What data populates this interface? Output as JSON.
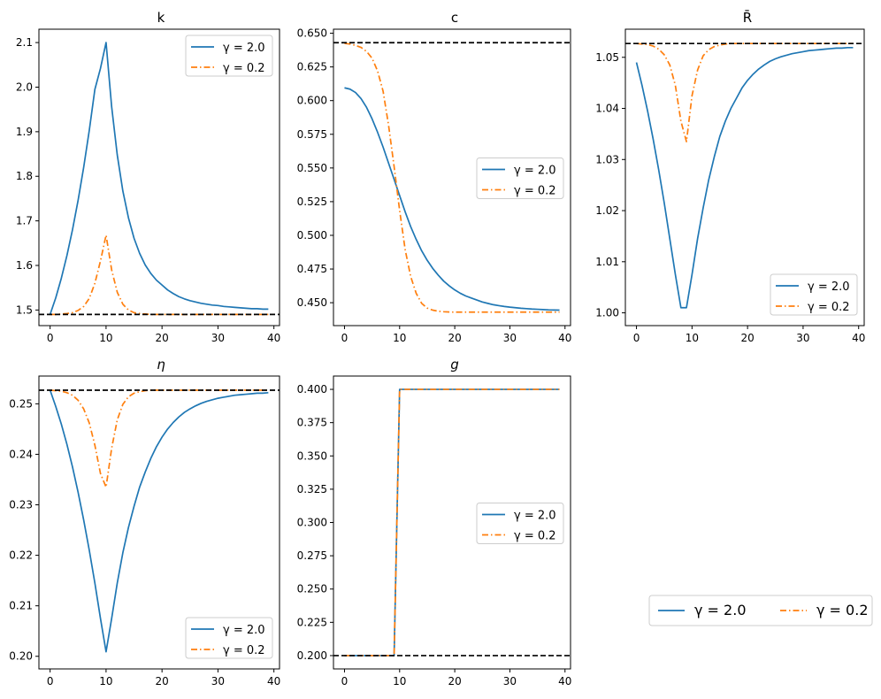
{
  "colors": {
    "blue": "#1f77b4",
    "orange": "#ff7f0e",
    "steady": "#000000"
  },
  "legend": {
    "entries": [
      "γ = 2.0",
      "γ = 0.2"
    ]
  },
  "chart_data": [
    {
      "type": "line",
      "title": "k",
      "xlabel": "",
      "ylabel": "",
      "xlim": [
        -2,
        41
      ],
      "ylim": [
        1.465,
        2.13
      ],
      "xticks": [
        0,
        10,
        20,
        30,
        40
      ],
      "yticks": [
        1.5,
        1.6,
        1.7,
        1.8,
        1.9,
        2.0,
        2.1
      ],
      "ytick_labels": [
        "1.5",
        "1.6",
        "1.7",
        "1.8",
        "1.9",
        "2.0",
        "2.1"
      ],
      "steady_state": 1.49,
      "legend_position": "top-right",
      "series": [
        {
          "name": "γ = 2.0",
          "style": "solid",
          "x": [
            0,
            1,
            2,
            3,
            4,
            5,
            6,
            7,
            8,
            9,
            10,
            11,
            12,
            13,
            14,
            15,
            16,
            17,
            18,
            19,
            20,
            21,
            22,
            23,
            24,
            25,
            26,
            27,
            28,
            29,
            30,
            31,
            32,
            33,
            34,
            35,
            36,
            37,
            38,
            39
          ],
          "values": [
            1.49,
            1.527,
            1.571,
            1.622,
            1.68,
            1.746,
            1.82,
            1.903,
            1.995,
            2.042,
            2.1,
            1.956,
            1.848,
            1.767,
            1.707,
            1.661,
            1.627,
            1.601,
            1.582,
            1.567,
            1.556,
            1.545,
            1.537,
            1.53,
            1.525,
            1.521,
            1.518,
            1.515,
            1.513,
            1.511,
            1.51,
            1.508,
            1.507,
            1.506,
            1.505,
            1.504,
            1.503,
            1.503,
            1.502,
            1.502
          ]
        },
        {
          "name": "γ = 0.2",
          "style": "dashdot",
          "x": [
            0,
            1,
            2,
            3,
            4,
            5,
            6,
            7,
            8,
            9,
            10,
            11,
            12,
            13,
            14,
            15,
            16,
            17,
            18,
            19,
            20,
            21,
            22,
            23,
            24,
            25,
            26,
            27,
            28,
            29,
            30,
            31,
            32,
            33,
            34,
            35,
            36,
            37,
            38,
            39
          ],
          "values": [
            1.49,
            1.49,
            1.491,
            1.492,
            1.494,
            1.499,
            1.508,
            1.526,
            1.56,
            1.61,
            1.668,
            1.59,
            1.54,
            1.513,
            1.5,
            1.494,
            1.492,
            1.491,
            1.49,
            1.49,
            1.49,
            1.49,
            1.49,
            1.49,
            1.49,
            1.49,
            1.49,
            1.49,
            1.49,
            1.49,
            1.49,
            1.49,
            1.49,
            1.49,
            1.49,
            1.49,
            1.49,
            1.49,
            1.49,
            1.49
          ]
        }
      ]
    },
    {
      "type": "line",
      "title": "c",
      "xlabel": "",
      "ylabel": "",
      "xlim": [
        -2,
        41
      ],
      "ylim": [
        0.433,
        0.653
      ],
      "xticks": [
        0,
        10,
        20,
        30,
        40
      ],
      "yticks": [
        0.45,
        0.475,
        0.5,
        0.525,
        0.55,
        0.575,
        0.6,
        0.625,
        0.65
      ],
      "ytick_labels": [
        "0.450",
        "0.475",
        "0.500",
        "0.525",
        "0.550",
        "0.575",
        "0.600",
        "0.625",
        "0.650"
      ],
      "steady_state": 0.643,
      "legend_position": "center-right",
      "series": [
        {
          "name": "γ = 2.0",
          "style": "solid",
          "x": [
            0,
            1,
            2,
            3,
            4,
            5,
            6,
            7,
            8,
            9,
            10,
            11,
            12,
            13,
            14,
            15,
            16,
            17,
            18,
            19,
            20,
            21,
            22,
            23,
            24,
            25,
            26,
            27,
            28,
            29,
            30,
            31,
            32,
            33,
            34,
            35,
            36,
            37,
            38,
            39
          ],
          "values": [
            0.6095,
            0.6085,
            0.606,
            0.6015,
            0.595,
            0.5865,
            0.5765,
            0.5655,
            0.5535,
            0.5415,
            0.5295,
            0.5175,
            0.5065,
            0.497,
            0.4885,
            0.4815,
            0.4755,
            0.4705,
            0.466,
            0.4625,
            0.4595,
            0.457,
            0.455,
            0.4535,
            0.452,
            0.4505,
            0.4495,
            0.4485,
            0.4478,
            0.4472,
            0.4467,
            0.4463,
            0.4459,
            0.4456,
            0.4453,
            0.4451,
            0.4449,
            0.4447,
            0.4446,
            0.4445
          ]
        },
        {
          "name": "γ = 0.2",
          "style": "dashdot",
          "x": [
            0,
            1,
            2,
            3,
            4,
            5,
            6,
            7,
            8,
            9,
            10,
            11,
            12,
            13,
            14,
            15,
            16,
            17,
            18,
            19,
            20,
            21,
            22,
            23,
            24,
            25,
            26,
            27,
            28,
            29,
            30,
            31,
            32,
            33,
            34,
            35,
            36,
            37,
            38,
            39
          ],
          "values": [
            0.6425,
            0.642,
            0.641,
            0.6395,
            0.6365,
            0.6315,
            0.622,
            0.607,
            0.5815,
            0.551,
            0.5185,
            0.4895,
            0.4695,
            0.457,
            0.4495,
            0.446,
            0.4445,
            0.4437,
            0.4433,
            0.4431,
            0.443,
            0.443,
            0.443,
            0.443,
            0.443,
            0.443,
            0.443,
            0.443,
            0.443,
            0.443,
            0.443,
            0.443,
            0.443,
            0.443,
            0.443,
            0.443,
            0.443,
            0.443,
            0.443,
            0.443
          ]
        }
      ]
    },
    {
      "type": "line",
      "title": "R̄",
      "xlabel": "",
      "ylabel": "",
      "xlim": [
        -2,
        41
      ],
      "ylim": [
        0.9975,
        1.0555
      ],
      "xticks": [
        0,
        10,
        20,
        30,
        40
      ],
      "yticks": [
        1.0,
        1.01,
        1.02,
        1.03,
        1.04,
        1.05
      ],
      "ytick_labels": [
        "1.00",
        "1.01",
        "1.02",
        "1.03",
        "1.04",
        "1.05"
      ],
      "steady_state": 1.0527,
      "legend_position": "bottom-right",
      "series": [
        {
          "name": "γ = 2.0",
          "style": "solid",
          "x": [
            0,
            1,
            2,
            3,
            4,
            5,
            6,
            7,
            8,
            9,
            10,
            11,
            12,
            13,
            14,
            15,
            16,
            17,
            18,
            19,
            20,
            21,
            22,
            23,
            24,
            25,
            26,
            27,
            28,
            29,
            30,
            31,
            32,
            33,
            34,
            35,
            36,
            37,
            38,
            39
          ],
          "values": [
            1.049,
            1.0445,
            1.0395,
            1.034,
            1.028,
            1.0215,
            1.0145,
            1.0075,
            1.001,
            1.001,
            1.0075,
            1.0145,
            1.0205,
            1.026,
            1.0305,
            1.0345,
            1.0375,
            1.04,
            1.042,
            1.044,
            1.0455,
            1.0467,
            1.0477,
            1.0485,
            1.0492,
            1.0497,
            1.0501,
            1.0504,
            1.0507,
            1.0509,
            1.0511,
            1.0513,
            1.0514,
            1.0515,
            1.0516,
            1.0517,
            1.0518,
            1.0518,
            1.0519,
            1.0519
          ]
        },
        {
          "name": "γ = 0.2",
          "style": "dashdot",
          "x": [
            0,
            1,
            2,
            3,
            4,
            5,
            6,
            7,
            8,
            9,
            10,
            11,
            12,
            13,
            14,
            15,
            16,
            17,
            18,
            19,
            20,
            21,
            22,
            23,
            24,
            25,
            26,
            27,
            28,
            29,
            30,
            31,
            32,
            33,
            34,
            35,
            36,
            37,
            38,
            39
          ],
          "values": [
            1.0527,
            1.0526,
            1.0525,
            1.0522,
            1.0516,
            1.0505,
            1.0485,
            1.0445,
            1.0375,
            1.0335,
            1.0425,
            1.0475,
            1.0503,
            1.0515,
            1.0521,
            1.0524,
            1.0526,
            1.0527,
            1.0527,
            1.0527,
            1.0527,
            1.0527,
            1.0527,
            1.0527,
            1.0527,
            1.0527,
            1.0527,
            1.0527,
            1.0527,
            1.0527,
            1.0527,
            1.0527,
            1.0527,
            1.0527,
            1.0527,
            1.0527,
            1.0527,
            1.0527,
            1.0527,
            1.0527
          ]
        }
      ]
    },
    {
      "type": "line",
      "title": "η",
      "xlabel": "",
      "ylabel": "",
      "xlim": [
        -2,
        41
      ],
      "ylim": [
        0.1975,
        0.2555
      ],
      "xticks": [
        0,
        10,
        20,
        30,
        40
      ],
      "yticks": [
        0.2,
        0.21,
        0.22,
        0.23,
        0.24,
        0.25
      ],
      "ytick_labels": [
        "0.20",
        "0.21",
        "0.22",
        "0.23",
        "0.24",
        "0.25"
      ],
      "steady_state": 0.2527,
      "legend_position": "bottom-right",
      "series": [
        {
          "name": "γ = 2.0",
          "style": "solid",
          "x": [
            0,
            1,
            2,
            3,
            4,
            5,
            6,
            7,
            8,
            9,
            10,
            11,
            12,
            13,
            14,
            15,
            16,
            17,
            18,
            19,
            20,
            21,
            22,
            23,
            24,
            25,
            26,
            27,
            28,
            29,
            30,
            31,
            32,
            33,
            34,
            35,
            36,
            37,
            38,
            39
          ],
          "values": [
            0.2527,
            0.2495,
            0.246,
            0.242,
            0.2375,
            0.2325,
            0.227,
            0.221,
            0.2145,
            0.2075,
            0.2009,
            0.2075,
            0.2145,
            0.2205,
            0.2255,
            0.2297,
            0.2335,
            0.2365,
            0.2392,
            0.2415,
            0.2434,
            0.245,
            0.2463,
            0.2474,
            0.2483,
            0.249,
            0.2496,
            0.2501,
            0.2505,
            0.2508,
            0.2511,
            0.2513,
            0.2515,
            0.2517,
            0.2518,
            0.2519,
            0.252,
            0.2521,
            0.2521,
            0.2522
          ]
        },
        {
          "name": "γ = 0.2",
          "style": "dashdot",
          "x": [
            0,
            1,
            2,
            3,
            4,
            5,
            6,
            7,
            8,
            9,
            10,
            11,
            12,
            13,
            14,
            15,
            16,
            17,
            18,
            19,
            20,
            21,
            22,
            23,
            24,
            25,
            26,
            27,
            28,
            29,
            30,
            31,
            32,
            33,
            34,
            35,
            36,
            37,
            38,
            39
          ],
          "values": [
            0.2527,
            0.2526,
            0.2525,
            0.2522,
            0.2517,
            0.2507,
            0.249,
            0.2462,
            0.2418,
            0.2362,
            0.2335,
            0.2412,
            0.2468,
            0.2499,
            0.2514,
            0.2521,
            0.2524,
            0.2526,
            0.2527,
            0.2527,
            0.2527,
            0.2527,
            0.2527,
            0.2527,
            0.2527,
            0.2527,
            0.2527,
            0.2527,
            0.2527,
            0.2527,
            0.2527,
            0.2527,
            0.2527,
            0.2527,
            0.2527,
            0.2527,
            0.2527,
            0.2527,
            0.2527,
            0.2527
          ]
        }
      ]
    },
    {
      "type": "line",
      "title": "g",
      "xlabel": "",
      "ylabel": "",
      "xlim": [
        -2,
        41
      ],
      "ylim": [
        0.19,
        0.41
      ],
      "xticks": [
        0,
        10,
        20,
        30,
        40
      ],
      "yticks": [
        0.2,
        0.225,
        0.25,
        0.275,
        0.3,
        0.325,
        0.35,
        0.375,
        0.4
      ],
      "ytick_labels": [
        "0.200",
        "0.225",
        "0.250",
        "0.275",
        "0.300",
        "0.325",
        "0.350",
        "0.375",
        "0.400"
      ],
      "steady_state": 0.2,
      "legend_position": "center-right",
      "series": [
        {
          "name": "γ = 2.0",
          "style": "solid",
          "x": [
            0,
            1,
            2,
            3,
            4,
            5,
            6,
            7,
            8,
            9,
            10,
            11,
            12,
            13,
            14,
            15,
            16,
            17,
            18,
            19,
            20,
            21,
            22,
            23,
            24,
            25,
            26,
            27,
            28,
            29,
            30,
            31,
            32,
            33,
            34,
            35,
            36,
            37,
            38,
            39
          ],
          "values": [
            0.2,
            0.2,
            0.2,
            0.2,
            0.2,
            0.2,
            0.2,
            0.2,
            0.2,
            0.2,
            0.4,
            0.4,
            0.4,
            0.4,
            0.4,
            0.4,
            0.4,
            0.4,
            0.4,
            0.4,
            0.4,
            0.4,
            0.4,
            0.4,
            0.4,
            0.4,
            0.4,
            0.4,
            0.4,
            0.4,
            0.4,
            0.4,
            0.4,
            0.4,
            0.4,
            0.4,
            0.4,
            0.4,
            0.4,
            0.4
          ]
        },
        {
          "name": "γ = 0.2",
          "style": "dashdot",
          "x": [
            0,
            1,
            2,
            3,
            4,
            5,
            6,
            7,
            8,
            9,
            10,
            11,
            12,
            13,
            14,
            15,
            16,
            17,
            18,
            19,
            20,
            21,
            22,
            23,
            24,
            25,
            26,
            27,
            28,
            29,
            30,
            31,
            32,
            33,
            34,
            35,
            36,
            37,
            38,
            39
          ],
          "values": [
            0.2,
            0.2,
            0.2,
            0.2,
            0.2,
            0.2,
            0.2,
            0.2,
            0.2,
            0.2,
            0.4,
            0.4,
            0.4,
            0.4,
            0.4,
            0.4,
            0.4,
            0.4,
            0.4,
            0.4,
            0.4,
            0.4,
            0.4,
            0.4,
            0.4,
            0.4,
            0.4,
            0.4,
            0.4,
            0.4,
            0.4,
            0.4,
            0.4,
            0.4,
            0.4,
            0.4,
            0.4,
            0.4,
            0.4,
            0.4
          ]
        }
      ]
    }
  ]
}
